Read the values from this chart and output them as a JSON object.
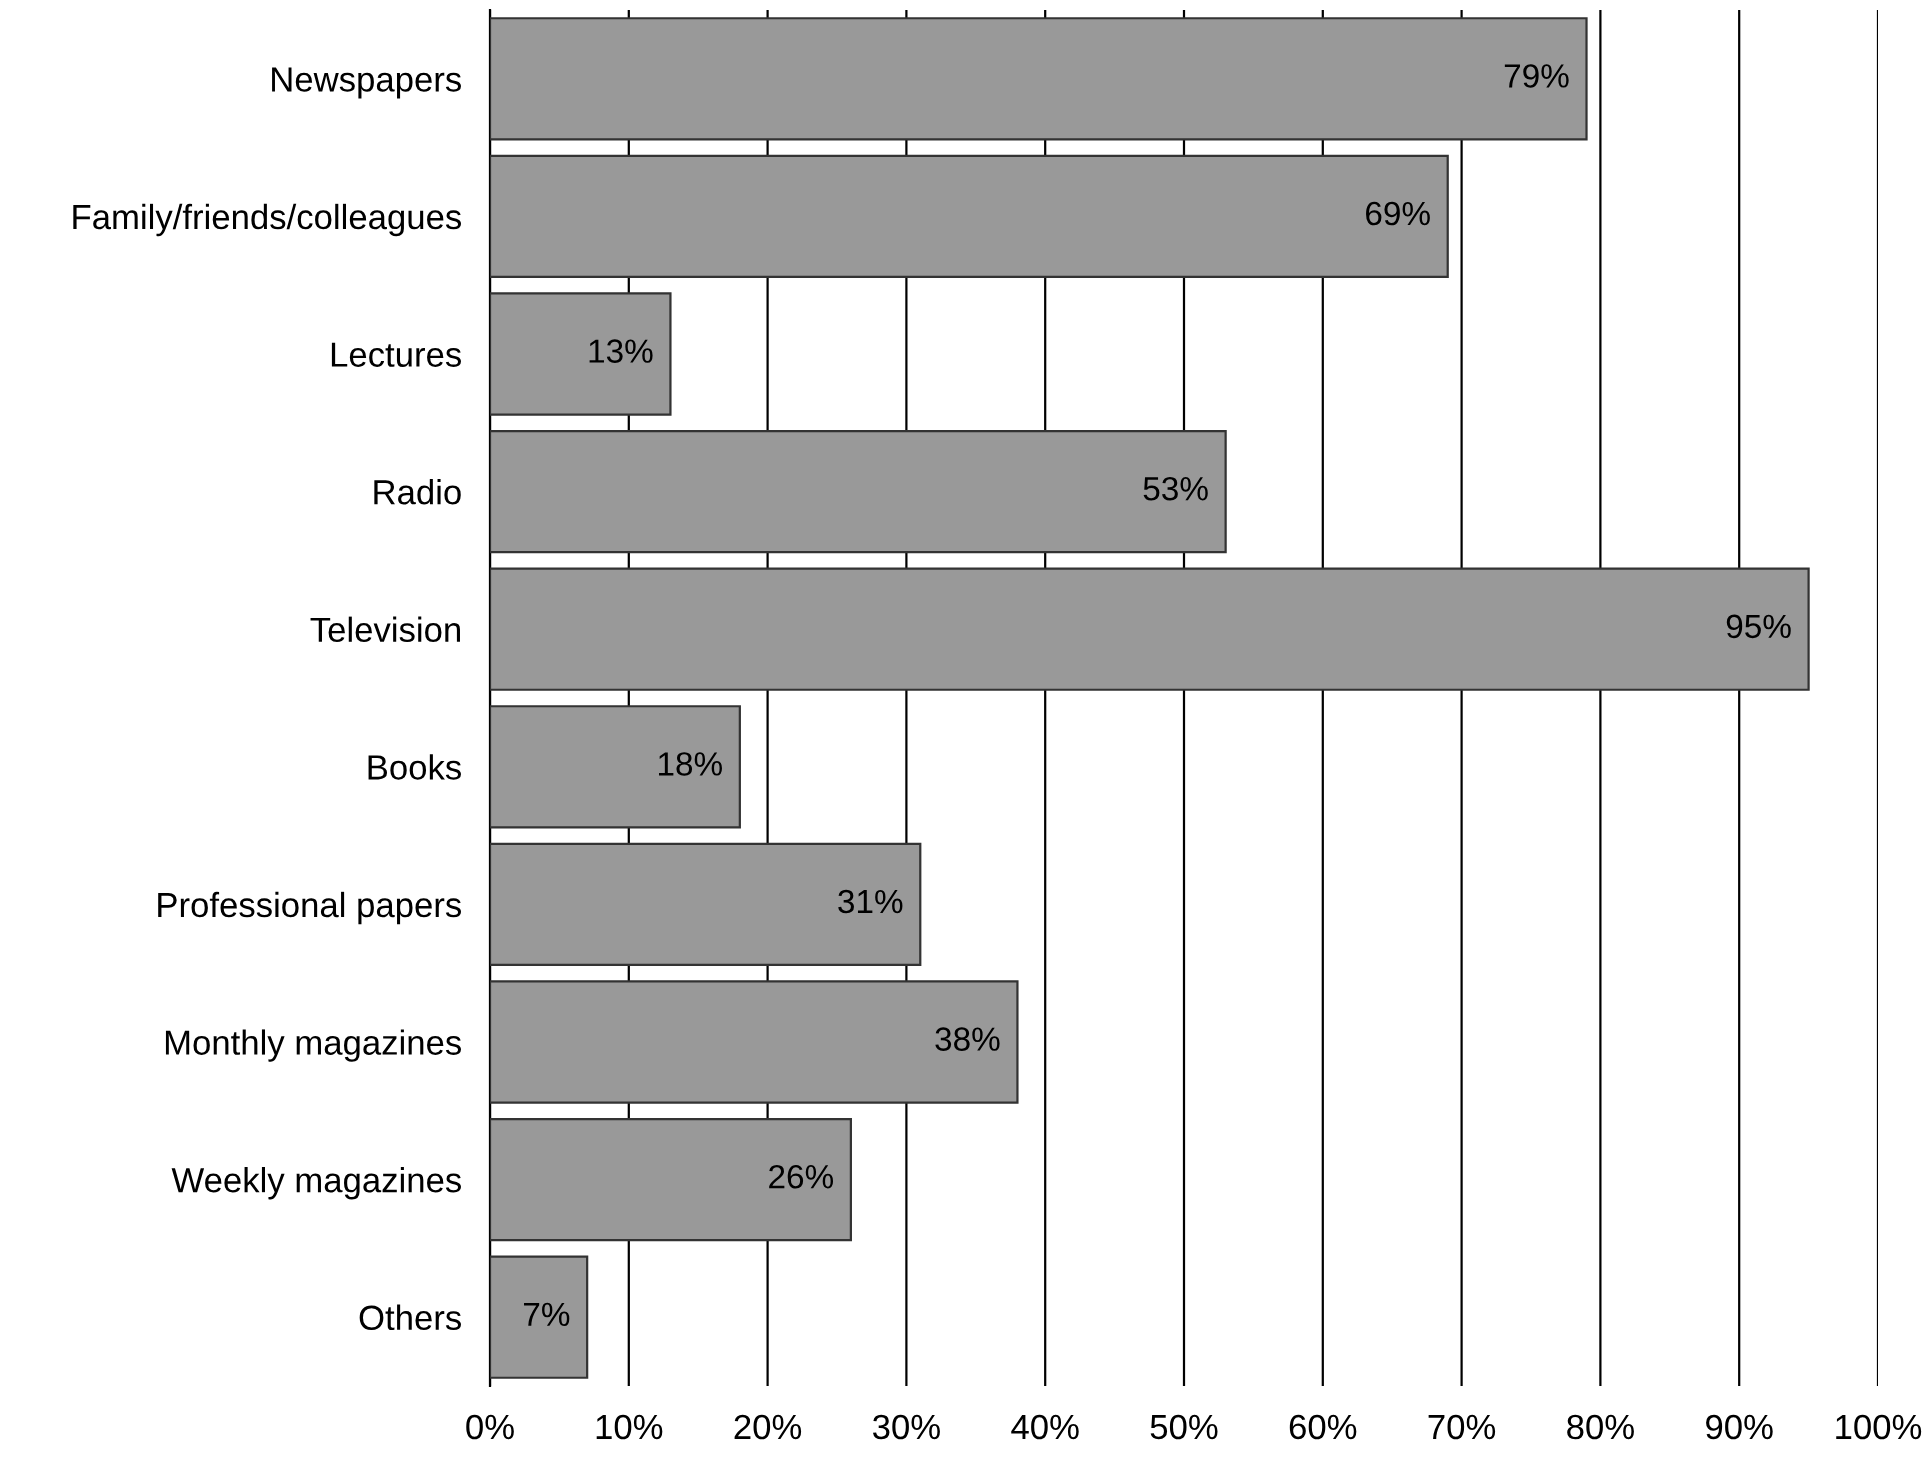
{
  "chart_data": {
    "type": "bar",
    "orientation": "horizontal",
    "categories": [
      "Newspapers",
      "Family/friends/colleagues",
      "Lectures",
      "Radio",
      "Television",
      "Books",
      "Professional papers",
      "Monthly magazines",
      "Weekly magazines",
      "Others"
    ],
    "values": [
      79,
      69,
      13,
      53,
      95,
      18,
      31,
      38,
      26,
      7
    ],
    "value_labels": [
      "79%",
      "69%",
      "13%",
      "53%",
      "95%",
      "18%",
      "31%",
      "38%",
      "26%",
      "7%"
    ],
    "color": "#999999",
    "xlim": [
      0,
      100
    ],
    "xticks": [
      {
        "value": 0,
        "label": "0%"
      },
      {
        "value": 10,
        "label": "10%"
      },
      {
        "value": 20,
        "label": "20%"
      },
      {
        "value": 30,
        "label": "30%"
      },
      {
        "value": 40,
        "label": "40%"
      },
      {
        "value": 50,
        "label": "50%"
      },
      {
        "value": 60,
        "label": "60%"
      },
      {
        "value": 70,
        "label": "70%"
      },
      {
        "value": 80,
        "label": "80%"
      },
      {
        "value": 90,
        "label": "90%"
      },
      {
        "value": 100,
        "label": "100%"
      }
    ],
    "grid": "x",
    "legend": false
  }
}
